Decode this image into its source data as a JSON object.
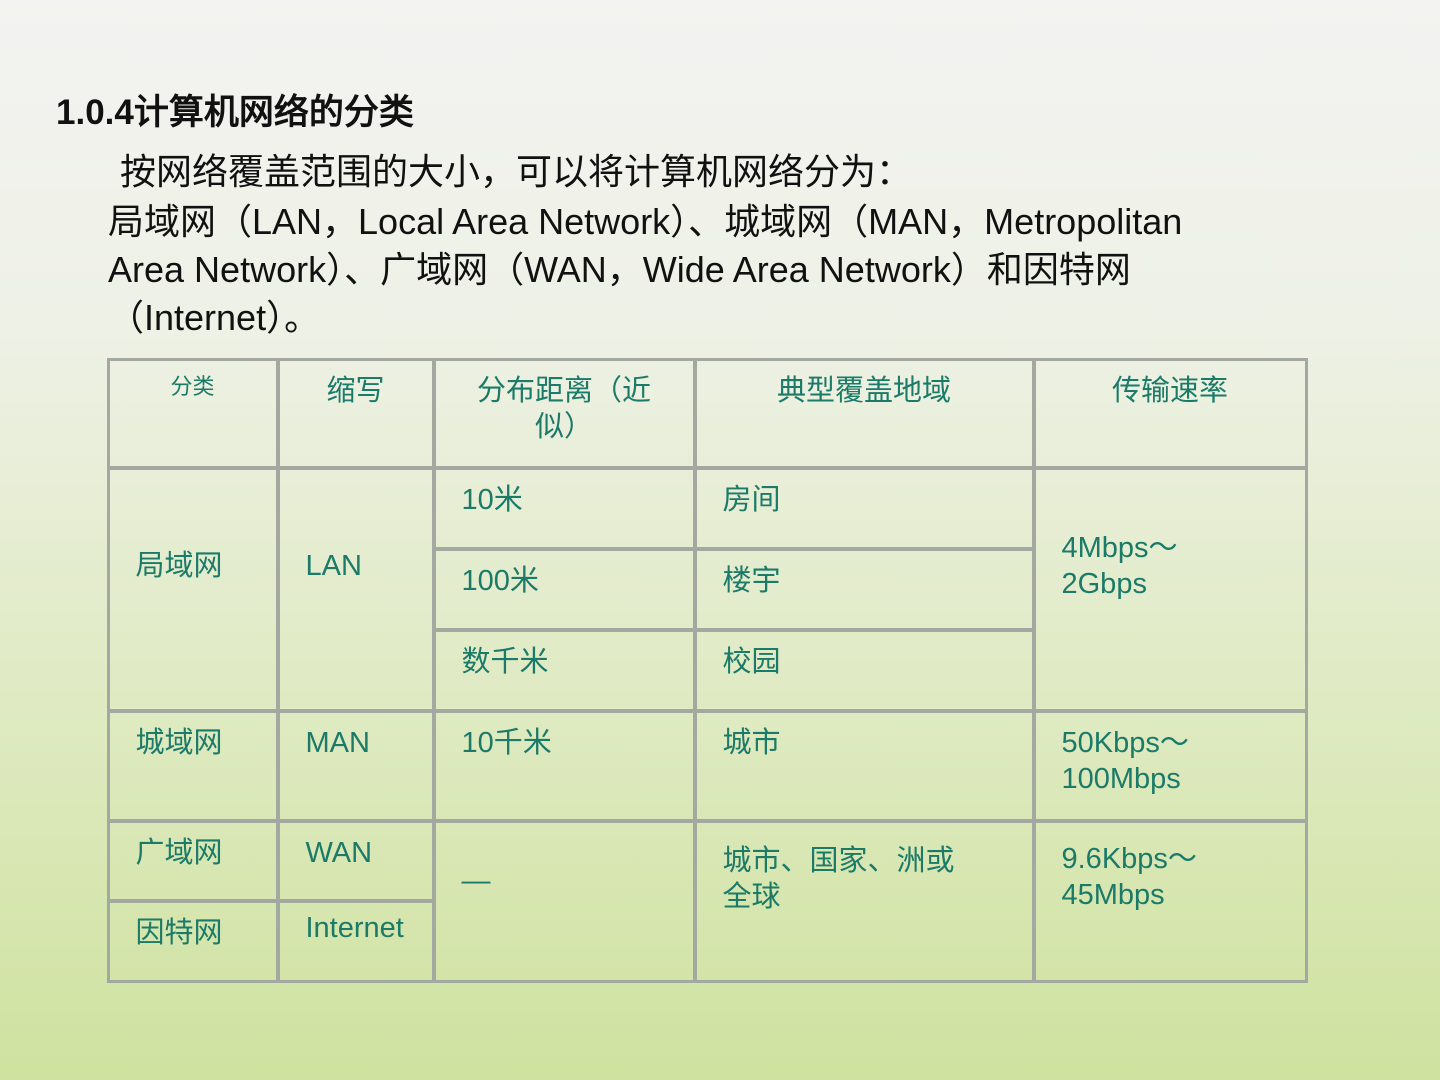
{
  "title": "1.0.4计算机网络的分类",
  "paragraph": [
    "按网络覆盖范围的大小，可以将计算机网络分为：",
    "局域网（LAN，Local Area Network）、城域网（MAN，Metropolitan",
    "Area Network）、广域网（WAN，Wide Area Network）和因特网",
    "（Internet）。"
  ],
  "table": {
    "headers": [
      "分类",
      "缩写",
      "分布距离（近似）",
      "典型覆盖地域",
      "传输速率"
    ],
    "rows": {
      "lan_type": "局域网",
      "lan_abbr": "LAN",
      "lan_d1": "10米",
      "lan_a1": "房间",
      "lan_d2": "100米",
      "lan_a2": "楼宇",
      "lan_d3": "数千米",
      "lan_a3": "校园",
      "lan_rate": "4Mbps～2Gbps",
      "man_type": "城域网",
      "man_abbr": "MAN",
      "man_dist": "10千米",
      "man_area": "城市",
      "man_rate": "50Kbps～100Mbps",
      "wan_type": "广域网",
      "wan_abbr": "WAN",
      "inet_type": "因特网",
      "inet_abbr": "Internet",
      "wan_dist": "—",
      "wan_area": "城市、国家、洲或全球",
      "wan_rate": "9.6Kbps～45Mbps"
    }
  },
  "colors": {
    "table_text": "#1b7a68",
    "table_border": "#a3a8a0"
  }
}
